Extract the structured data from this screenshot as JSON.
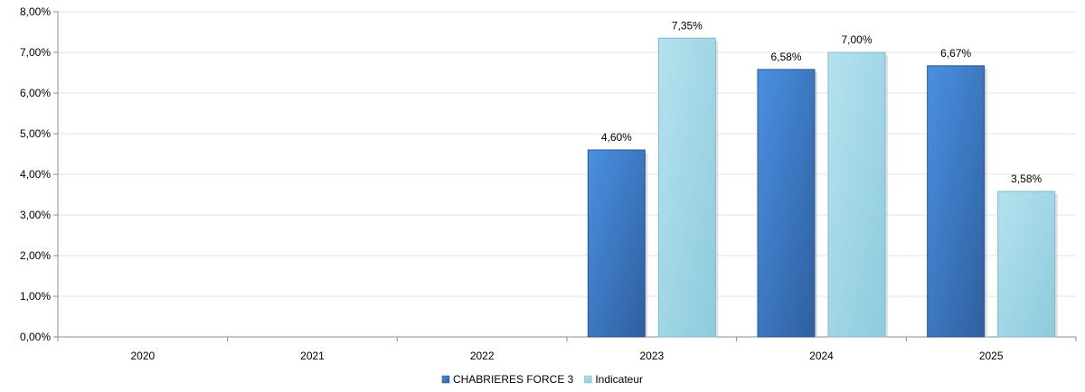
{
  "chart_data": {
    "type": "bar",
    "categories": [
      "2020",
      "2021",
      "2022",
      "2023",
      "2024",
      "2025"
    ],
    "series": [
      {
        "name": "CHABRIERES FORCE 3",
        "values": [
          null,
          null,
          null,
          4.6,
          6.58,
          6.67
        ],
        "labels": [
          "",
          "",
          "",
          "4,60%",
          "6,58%",
          "6,67%"
        ],
        "color": "#3a78c9"
      },
      {
        "name": "Indicateur",
        "values": [
          null,
          null,
          null,
          7.35,
          7.0,
          3.58
        ],
        "labels": [
          "",
          "",
          "",
          "7,35%",
          "7,00%",
          "3,58%"
        ],
        "color": "#9fd6e6"
      }
    ],
    "ylim": [
      0,
      8
    ],
    "yticks": [
      {
        "value": 0,
        "label": "0,00%"
      },
      {
        "value": 1,
        "label": "1,00%"
      },
      {
        "value": 2,
        "label": "2,00%"
      },
      {
        "value": 3,
        "label": "3,00%"
      },
      {
        "value": 4,
        "label": "4,00%"
      },
      {
        "value": 5,
        "label": "5,00%"
      },
      {
        "value": 6,
        "label": "6,00%"
      },
      {
        "value": 7,
        "label": "7,00%"
      },
      {
        "value": 8,
        "label": "8,00%"
      }
    ],
    "grid": true,
    "legend_position": "bottom-center",
    "xlabel": "",
    "ylabel": "",
    "title": ""
  }
}
